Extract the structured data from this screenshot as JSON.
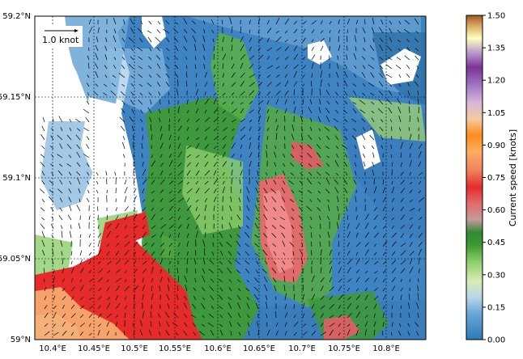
{
  "map": {
    "type": "current-speed-map",
    "lat_ticks": [
      "59.2°N",
      "59.15°N",
      "59.1°N",
      "59.05°N",
      "59°N"
    ],
    "lon_ticks": [
      "10.4°E",
      "10.45°E",
      "10.5°E",
      "10.55°E",
      "10.6°E",
      "10.65°E",
      "10.7°E",
      "10.75°E",
      "10.8°E"
    ],
    "lat_range": [
      59.0,
      59.2
    ],
    "lon_range": [
      10.38,
      10.85
    ],
    "grid": true,
    "scale_arrow_label": "1.0 knot",
    "colors": {
      "land": "#ffffff",
      "low": "#2a6fb0",
      "mid_low": "#9dc3e6",
      "mid": "#3e9a32",
      "high": "#e62b2b",
      "max": "#b06a2c"
    }
  },
  "colorbar": {
    "label": "Current speed [knots]",
    "ticks": [
      "1.50",
      "1.35",
      "1.20",
      "1.05",
      "0.90",
      "0.75",
      "0.60",
      "0.45",
      "0.30",
      "0.15",
      "0.00"
    ],
    "range": [
      0.0,
      1.5
    ],
    "stops": [
      "#2c7bb6",
      "#9dc3e6",
      "#ffffbf",
      "#3e9a32",
      "#a6d96a",
      "#d7a0a0",
      "#e62b2b",
      "#fdae61",
      "#ff8c00",
      "#c2a5cf",
      "#7b3294",
      "#ffffbf",
      "#b06a2c"
    ]
  }
}
